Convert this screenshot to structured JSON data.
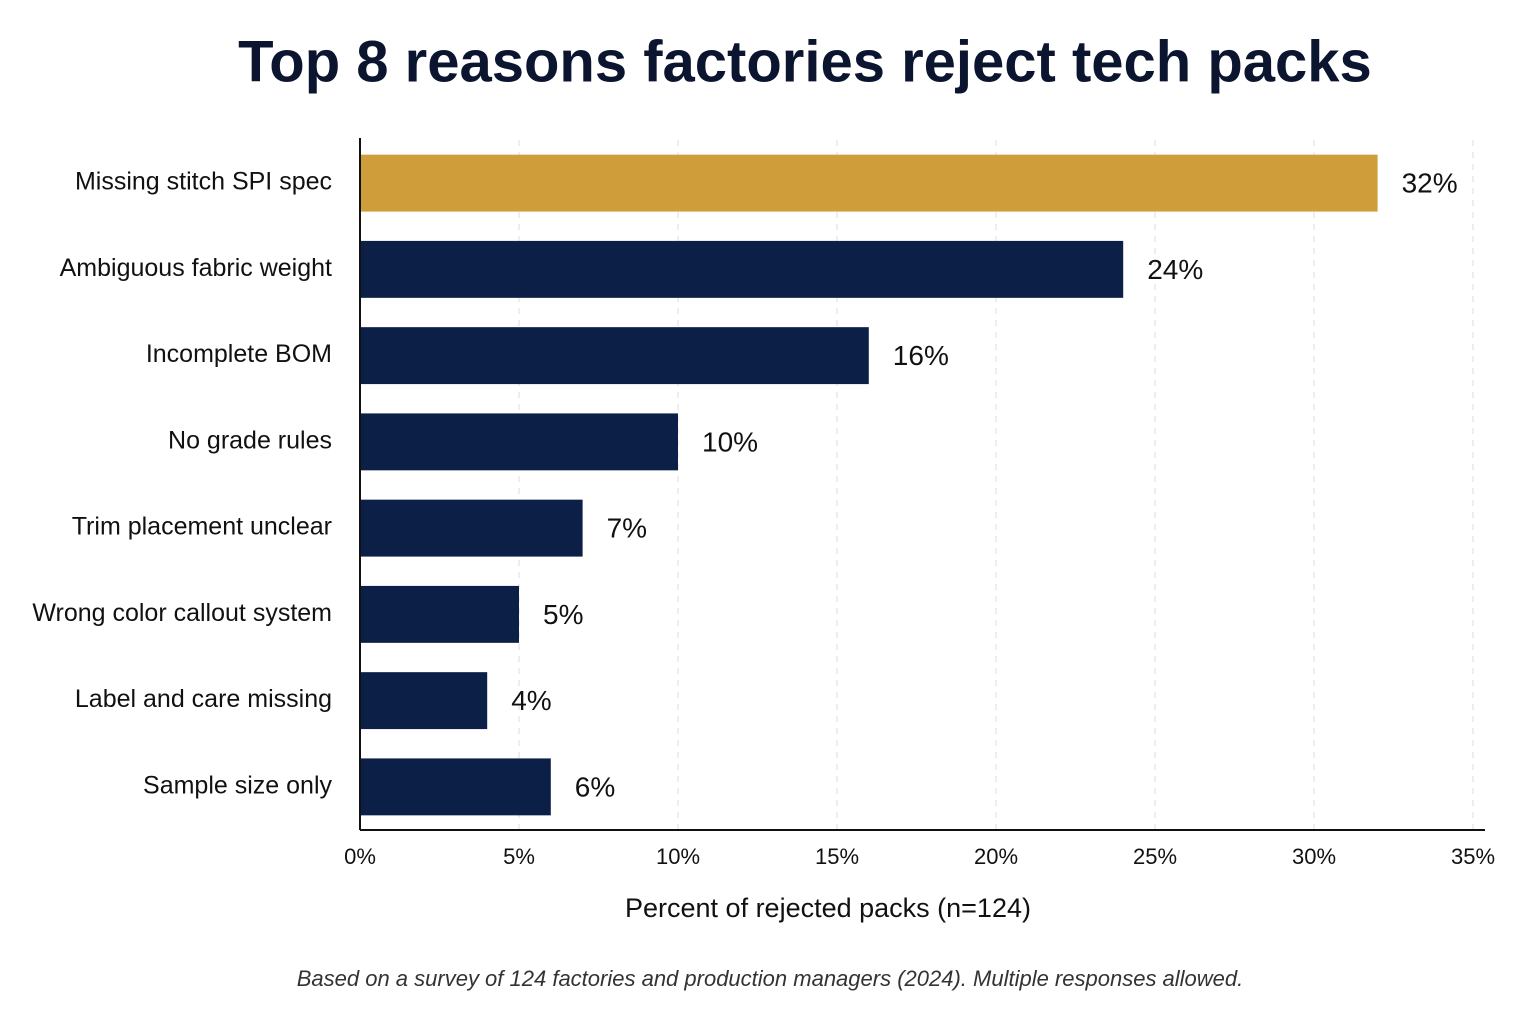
{
  "chart_data": {
    "type": "bar",
    "orientation": "horizontal",
    "title": "Top 8 reasons factories reject tech packs",
    "categories": [
      "Missing stitch SPI spec",
      "Ambiguous fabric weight",
      "Incomplete BOM",
      "No grade rules",
      "Trim placement unclear",
      "Wrong color callout system",
      "Label and care missing",
      "Sample size only"
    ],
    "values": [
      32,
      24,
      16,
      10,
      7,
      5,
      4,
      6
    ],
    "value_labels": [
      "32%",
      "24%",
      "16%",
      "10%",
      "7%",
      "5%",
      "4%",
      "6%"
    ],
    "colors": [
      "#cf9e3a",
      "#0b1f47",
      "#0b1f47",
      "#0b1f47",
      "#0b1f47",
      "#0b1f47",
      "#0b1f47",
      "#0b1f47"
    ],
    "xlim": [
      0,
      35
    ],
    "xticks": [
      {
        "value": 0,
        "label": "0%"
      },
      {
        "value": 5,
        "label": "5%"
      },
      {
        "value": 10,
        "label": "10%"
      },
      {
        "value": 15,
        "label": "15%"
      },
      {
        "value": 20,
        "label": "20%"
      },
      {
        "value": 25,
        "label": "25%"
      },
      {
        "value": 30,
        "label": "30%"
      },
      {
        "value": 35,
        "label": "35%"
      }
    ],
    "xlabel": "Percent of rejected packs (n=124)",
    "note": "Based on a survey of 124 factories and production managers (2024). Multiple responses allowed.",
    "grid": true
  }
}
